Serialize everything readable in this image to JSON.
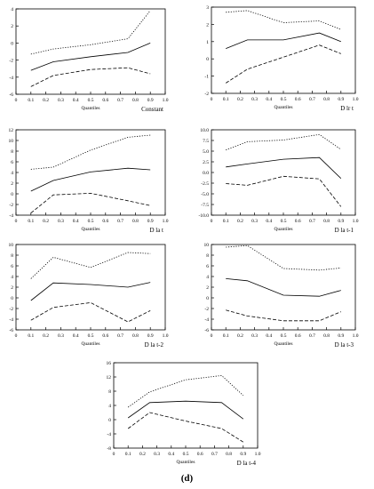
{
  "caption": "(d)",
  "chart_data": [
    {
      "type": "line",
      "title": "Constant",
      "xlabel": "Quantiles",
      "xlim": [
        0,
        1.0
      ],
      "ylim": [
        -6,
        4
      ],
      "xticks": [
        "0",
        "0.1",
        "0.2",
        "0.3",
        "0.4",
        "0.5",
        "0.6",
        "0.7",
        "0.8",
        "0.9",
        "1.0"
      ],
      "yticks": [
        "-6",
        "-4",
        "-2",
        "0",
        "2",
        "4"
      ],
      "ytick_values": [
        -6,
        -4,
        -2,
        0,
        2,
        4
      ],
      "x": [
        0.1,
        0.25,
        0.5,
        0.75,
        0.9
      ],
      "series": [
        {
          "style": "dotted",
          "values": [
            -1.3,
            -0.7,
            -0.2,
            0.5,
            3.8
          ]
        },
        {
          "style": "solid",
          "values": [
            -3.2,
            -2.2,
            -1.6,
            -1.1,
            0.0
          ]
        },
        {
          "style": "dashed",
          "values": [
            -5.1,
            -3.8,
            -3.1,
            -2.9,
            -3.6
          ]
        }
      ]
    },
    {
      "type": "line",
      "title": "D lr t",
      "xlabel": "Quantiles",
      "xlim": [
        0,
        1.0
      ],
      "ylim": [
        -2,
        3
      ],
      "xticks": [
        "0",
        "0.1",
        "0.2",
        "0.3",
        "0.4",
        "0.5",
        "0.6",
        "0.7",
        "0.8",
        "0.9",
        "1.0"
      ],
      "yticks": [
        "-2",
        "-1",
        "0",
        "1",
        "2",
        "3"
      ],
      "ytick_values": [
        -2,
        -1,
        0,
        1,
        2,
        3
      ],
      "x": [
        0.1,
        0.25,
        0.5,
        0.75,
        0.9
      ],
      "series": [
        {
          "style": "dotted",
          "values": [
            2.7,
            2.8,
            2.1,
            2.2,
            1.7
          ]
        },
        {
          "style": "solid",
          "values": [
            0.6,
            1.1,
            1.1,
            1.5,
            1.0
          ]
        },
        {
          "style": "dashed",
          "values": [
            -1.4,
            -0.6,
            0.1,
            0.8,
            0.3
          ]
        }
      ]
    },
    {
      "type": "line",
      "title": "D la t",
      "xlabel": "Quantiles",
      "xlim": [
        0,
        1.0
      ],
      "ylim": [
        -4,
        12
      ],
      "xticks": [
        "0",
        "0.1",
        "0.2",
        "0.3",
        "0.4",
        "0.5",
        "0.6",
        "0.7",
        "0.8",
        "0.9",
        "1.0"
      ],
      "yticks": [
        "-4",
        "-2",
        "0",
        "2",
        "4",
        "6",
        "8",
        "10",
        "12"
      ],
      "ytick_values": [
        -4,
        -2,
        0,
        2,
        4,
        6,
        8,
        10,
        12
      ],
      "x": [
        0.1,
        0.25,
        0.5,
        0.75,
        0.9
      ],
      "series": [
        {
          "style": "dotted",
          "values": [
            4.6,
            5.0,
            8.2,
            10.6,
            11.0
          ]
        },
        {
          "style": "solid",
          "values": [
            0.5,
            2.5,
            4.1,
            4.8,
            4.5
          ]
        },
        {
          "style": "dashed",
          "values": [
            -3.6,
            -0.2,
            0.1,
            -1.3,
            -2.2
          ]
        }
      ]
    },
    {
      "type": "line",
      "title": "D la t-1",
      "xlabel": "Quantiles",
      "xlim": [
        0,
        1.0
      ],
      "ylim": [
        -10,
        10
      ],
      "xticks": [
        "0",
        "0.1",
        "0.2",
        "0.3",
        "0.4",
        "0.5",
        "0.6",
        "0.7",
        "0.8",
        "0.9",
        "1.0"
      ],
      "yticks": [
        "-10.0",
        "-7.5",
        "-5.0",
        "-2.5",
        "0.0",
        "2.5",
        "5.0",
        "7.5",
        "10.0"
      ],
      "ytick_values": [
        -10,
        -7.5,
        -5,
        -2.5,
        0,
        2.5,
        5,
        7.5,
        10
      ],
      "x": [
        0.1,
        0.25,
        0.5,
        0.75,
        0.9
      ],
      "series": [
        {
          "style": "dotted",
          "values": [
            5.3,
            7.2,
            7.6,
            8.9,
            5.4
          ]
        },
        {
          "style": "solid",
          "values": [
            1.3,
            2.0,
            3.1,
            3.5,
            -1.4
          ]
        },
        {
          "style": "dashed",
          "values": [
            -2.6,
            -3.0,
            -0.9,
            -1.5,
            -8.0
          ]
        }
      ]
    },
    {
      "type": "line",
      "title": "D la t-2",
      "xlabel": "Quantiles",
      "xlim": [
        0,
        1.0
      ],
      "ylim": [
        -6,
        10
      ],
      "xticks": [
        "0",
        "0.1",
        "0.2",
        "0.3",
        "0.4",
        "0.5",
        "0.6",
        "0.7",
        "0.8",
        "0.9",
        "1.0"
      ],
      "yticks": [
        "-6",
        "-4",
        "-2",
        "0",
        "2",
        "4",
        "6",
        "8",
        "10"
      ],
      "ytick_values": [
        -6,
        -4,
        -2,
        0,
        2,
        4,
        6,
        8,
        10
      ],
      "x": [
        0.1,
        0.25,
        0.5,
        0.75,
        0.9
      ],
      "series": [
        {
          "style": "dotted",
          "values": [
            3.6,
            7.6,
            5.7,
            8.5,
            8.3
          ]
        },
        {
          "style": "solid",
          "values": [
            -0.5,
            2.8,
            2.5,
            2.0,
            2.9
          ]
        },
        {
          "style": "dashed",
          "values": [
            -4.2,
            -1.8,
            -0.9,
            -4.5,
            -2.4
          ]
        }
      ]
    },
    {
      "type": "line",
      "title": "D la t-3",
      "xlabel": "Quantiles",
      "xlim": [
        0,
        1.0
      ],
      "ylim": [
        -6,
        10
      ],
      "xticks": [
        "0",
        "0.1",
        "0.2",
        "0.3",
        "0.4",
        "0.5",
        "0.6",
        "0.7",
        "0.8",
        "0.9",
        "1.0"
      ],
      "yticks": [
        "-6",
        "-4",
        "-2",
        "0",
        "2",
        "4",
        "6",
        "8",
        "10"
      ],
      "ytick_values": [
        -6,
        -4,
        -2,
        0,
        2,
        4,
        6,
        8,
        10
      ],
      "x": [
        0.1,
        0.25,
        0.5,
        0.75,
        0.9
      ],
      "series": [
        {
          "style": "dotted",
          "values": [
            9.5,
            9.8,
            5.5,
            5.2,
            5.6
          ]
        },
        {
          "style": "solid",
          "values": [
            3.6,
            3.2,
            0.5,
            0.3,
            1.4
          ]
        },
        {
          "style": "dashed",
          "values": [
            -2.3,
            -3.4,
            -4.3,
            -4.3,
            -2.6
          ]
        }
      ]
    },
    {
      "type": "line",
      "title": "D la t-4",
      "xlabel": "Quantiles",
      "xlim": [
        0,
        1.0
      ],
      "ylim": [
        -8,
        16
      ],
      "xticks": [
        "0",
        "0.1",
        "0.2",
        "0.3",
        "0.4",
        "0.5",
        "0.6",
        "0.7",
        "0.8",
        "0.9",
        "1.0"
      ],
      "yticks": [
        "-8",
        "-4",
        "0",
        "4",
        "8",
        "12",
        "16"
      ],
      "ytick_values": [
        -8,
        -4,
        0,
        4,
        8,
        12,
        16
      ],
      "x": [
        0.1,
        0.25,
        0.5,
        0.75,
        0.9
      ],
      "series": [
        {
          "style": "dotted",
          "values": [
            3.5,
            7.8,
            11.2,
            12.4,
            6.8
          ]
        },
        {
          "style": "solid",
          "values": [
            0.5,
            4.8,
            5.2,
            4.8,
            0.2
          ]
        },
        {
          "style": "dashed",
          "values": [
            -2.5,
            2.0,
            -0.4,
            -2.5,
            -6.3
          ]
        }
      ]
    }
  ]
}
